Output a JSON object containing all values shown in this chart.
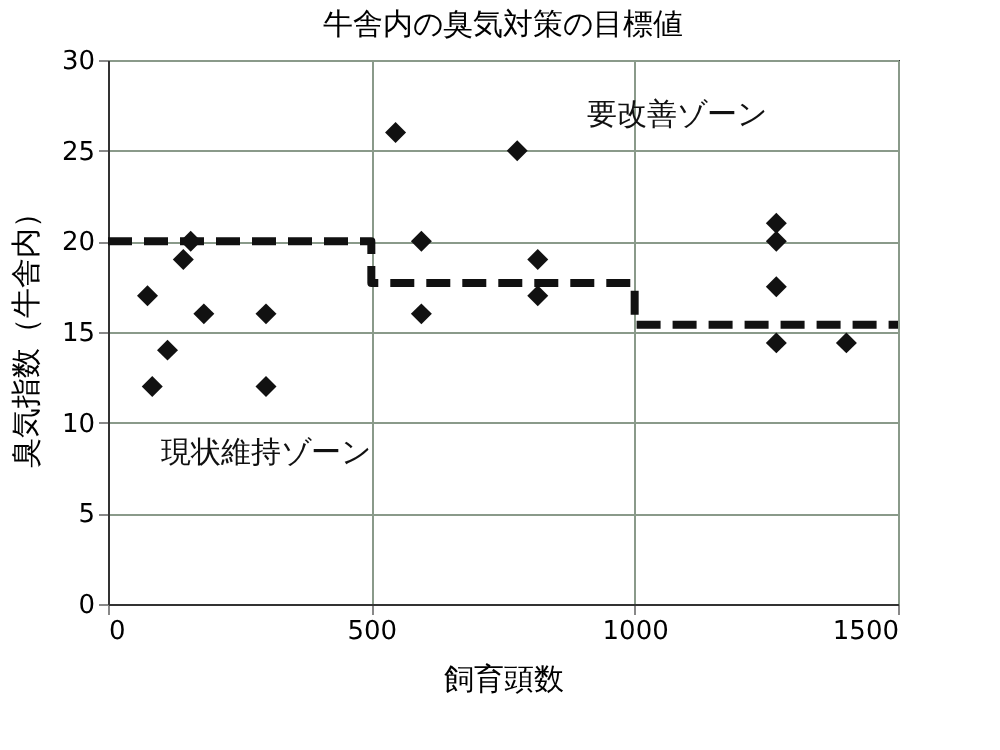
{
  "chart_data": {
    "type": "scatter",
    "title": "牛舎内の臭気対策の目標値",
    "xlabel": "飼育頭数",
    "ylabel": "臭気指数（牛舎内）",
    "annotations": [
      "要改善ゾーン",
      "現状維持ゾーン"
    ],
    "xlim": [
      0,
      1500
    ],
    "xticks": [
      0,
      500,
      1000,
      1500
    ],
    "ylim": [
      0,
      30
    ],
    "yticks": [
      0,
      5,
      10,
      15,
      20,
      25,
      30
    ],
    "grid": true,
    "series": [
      {
        "color": "#111111",
        "marker": "diamond",
        "x": [
          75,
          113,
          84,
          157,
          143,
          182,
          300,
          300,
          546,
          595,
          595,
          777,
          816,
          816,
          1269,
          1269,
          1269,
          1269,
          1402
        ],
        "values": [
          17,
          14,
          12,
          20,
          19,
          16,
          16,
          12,
          26,
          20,
          16,
          25,
          19,
          17,
          21,
          20,
          17.5,
          14.4,
          14.4
        ]
      },
      {
        "type": "line",
        "color": "#111111",
        "line_style": "dashed",
        "x": [
          0,
          500,
          500,
          1000,
          1000,
          1500
        ],
        "values": [
          20,
          20,
          17.7,
          17.7,
          15.4,
          15.4
        ]
      }
    ]
  }
}
